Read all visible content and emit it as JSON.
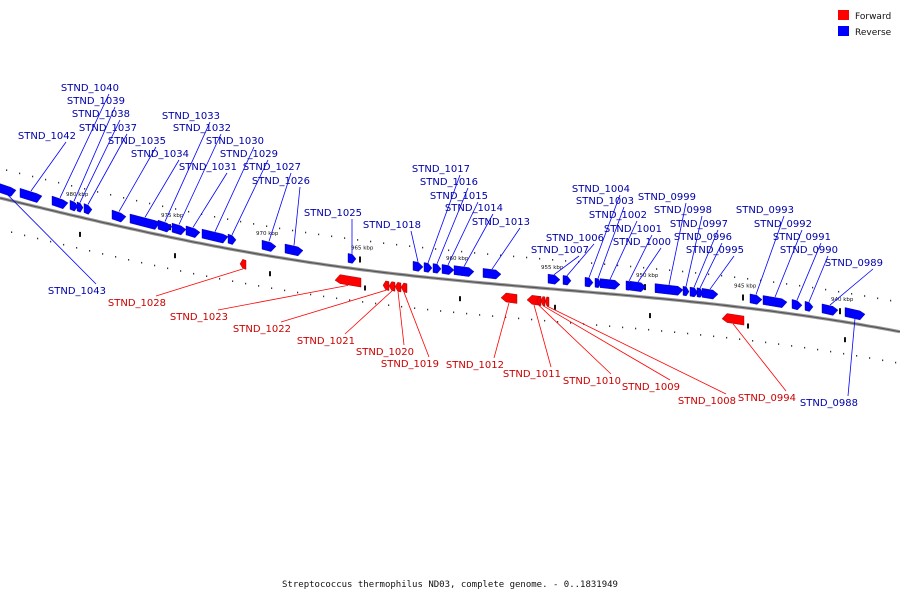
{
  "legend": [
    {
      "label": "Forward",
      "color": "#ff0000"
    },
    {
      "label": "Reverse",
      "color": "#0000ff"
    }
  ],
  "caption": "Streptococcus thermophilus ND03, complete genome. - 0..1831949",
  "colors": {
    "forward": "#ff0000",
    "reverse": "#0000ff",
    "forward_text": "#cc0000",
    "reverse_text": "#0000aa",
    "backbone": "#777777"
  },
  "kbp_marks": [
    "980 kbp",
    "975 kbp",
    "970 kbp",
    "965 kbp",
    "960 kbp",
    "955 kbp",
    "950 kbp",
    "945 kbp",
    "940 kbp"
  ],
  "genes": [
    {
      "id": "STND_1043",
      "strand": "reverse"
    },
    {
      "id": "STND_1042",
      "strand": "reverse"
    },
    {
      "id": "STND_1040",
      "strand": "reverse"
    },
    {
      "id": "STND_1039",
      "strand": "reverse"
    },
    {
      "id": "STND_1038",
      "strand": "reverse"
    },
    {
      "id": "STND_1037",
      "strand": "reverse"
    },
    {
      "id": "STND_1035",
      "strand": "reverse"
    },
    {
      "id": "STND_1034",
      "strand": "reverse"
    },
    {
      "id": "STND_1033",
      "strand": "reverse"
    },
    {
      "id": "STND_1032",
      "strand": "reverse"
    },
    {
      "id": "STND_1031",
      "strand": "reverse"
    },
    {
      "id": "STND_1030",
      "strand": "reverse"
    },
    {
      "id": "STND_1029",
      "strand": "reverse"
    },
    {
      "id": "STND_1028",
      "strand": "forward"
    },
    {
      "id": "STND_1027",
      "strand": "reverse"
    },
    {
      "id": "STND_1026",
      "strand": "reverse"
    },
    {
      "id": "STND_1025",
      "strand": "reverse"
    },
    {
      "id": "STND_1023",
      "strand": "forward"
    },
    {
      "id": "STND_1022",
      "strand": "forward"
    },
    {
      "id": "STND_1021",
      "strand": "forward"
    },
    {
      "id": "STND_1020",
      "strand": "forward"
    },
    {
      "id": "STND_1019",
      "strand": "forward"
    },
    {
      "id": "STND_1018",
      "strand": "reverse"
    },
    {
      "id": "STND_1017",
      "strand": "reverse"
    },
    {
      "id": "STND_1016",
      "strand": "reverse"
    },
    {
      "id": "STND_1015",
      "strand": "reverse"
    },
    {
      "id": "STND_1014",
      "strand": "reverse"
    },
    {
      "id": "STND_1013",
      "strand": "reverse"
    },
    {
      "id": "STND_1012",
      "strand": "forward"
    },
    {
      "id": "STND_1011",
      "strand": "forward"
    },
    {
      "id": "STND_1010",
      "strand": "forward"
    },
    {
      "id": "STND_1009",
      "strand": "forward"
    },
    {
      "id": "STND_1008",
      "strand": "forward"
    },
    {
      "id": "STND_1007",
      "strand": "reverse"
    },
    {
      "id": "STND_1006",
      "strand": "reverse"
    },
    {
      "id": "STND_1004",
      "strand": "reverse"
    },
    {
      "id": "STND_1003",
      "strand": "reverse"
    },
    {
      "id": "STND_1002",
      "strand": "reverse"
    },
    {
      "id": "STND_1001",
      "strand": "reverse"
    },
    {
      "id": "STND_1000",
      "strand": "reverse"
    },
    {
      "id": "STND_0999",
      "strand": "reverse"
    },
    {
      "id": "STND_0998",
      "strand": "reverse"
    },
    {
      "id": "STND_0997",
      "strand": "reverse"
    },
    {
      "id": "STND_0996",
      "strand": "reverse"
    },
    {
      "id": "STND_0995",
      "strand": "reverse"
    },
    {
      "id": "STND_0994",
      "strand": "forward"
    },
    {
      "id": "STND_0993",
      "strand": "reverse"
    },
    {
      "id": "STND_0992",
      "strand": "reverse"
    },
    {
      "id": "STND_0991",
      "strand": "reverse"
    },
    {
      "id": "STND_0990",
      "strand": "reverse"
    },
    {
      "id": "STND_0989",
      "strand": "reverse"
    },
    {
      "id": "STND_0988",
      "strand": "reverse"
    }
  ]
}
